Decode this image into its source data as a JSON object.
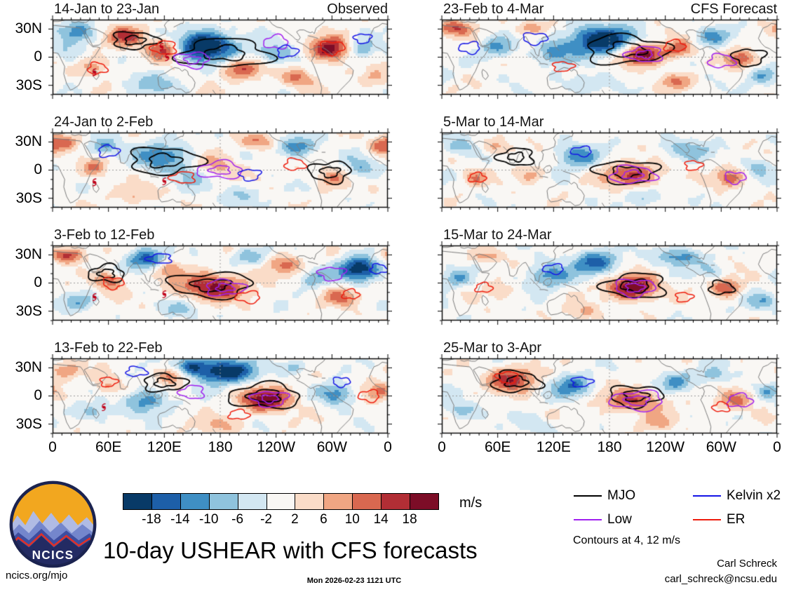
{
  "title": "10-day USHEAR with CFS forecasts",
  "header": {
    "left_col_label": "Observed",
    "right_col_label": "CFS Forecast"
  },
  "notes": {
    "contours": "Contours at 4, 12 m/s",
    "units": "m/s"
  },
  "logo": {
    "text": "NCICS"
  },
  "footer": {
    "site": "ncics.org/mjo",
    "timestamp": "Mon 2026-02-23 1121 UTC",
    "credit_name": "Carl Schreck",
    "credit_email": "carl_schreck@ncsu.edu"
  },
  "chart_data": {
    "type": "heatmap",
    "projection": "longitude 0E through 180 to 0, latitude 40N to 40S",
    "x_ticks": [
      "0",
      "60E",
      "120E",
      "180",
      "120W",
      "60W",
      "0"
    ],
    "y_ticks": [
      "30N",
      "0",
      "30S"
    ],
    "colorbar": {
      "label": "m/s",
      "levels": [
        -18,
        -14,
        -10,
        -6,
        -2,
        2,
        6,
        10,
        14,
        18
      ],
      "colors": [
        "#083a67",
        "#1d5fa8",
        "#3f8fc4",
        "#8fc3dd",
        "#d3e7f2",
        "#f9f7f4",
        "#fadcc8",
        "#f0a683",
        "#d96850",
        "#b22e35",
        "#7c0d27"
      ]
    },
    "legend": [
      {
        "label": "MJO",
        "color": "#000000"
      },
      {
        "label": "Low",
        "color": "#a020f0"
      },
      {
        "label": "Kelvin x2",
        "color": "#1414e6"
      },
      {
        "label": "ER",
        "color": "#ee1c0c"
      }
    ],
    "panels": [
      {
        "label": "14-Jan to 23-Jan",
        "column": 0,
        "row": 0,
        "blobs": [
          [
            165,
            12,
            -26,
            22,
            11
          ],
          [
            237,
            2,
            -10,
            16,
            9
          ],
          [
            28,
            27,
            -13,
            13,
            8
          ],
          [
            333,
            8,
            -10,
            11,
            7
          ],
          [
            105,
            -28,
            -8,
            18,
            9
          ],
          [
            120,
            8,
            17,
            12,
            8
          ],
          [
            80,
            22,
            15,
            15,
            8
          ],
          [
            298,
            8,
            21,
            14,
            9
          ],
          [
            205,
            -12,
            14,
            16,
            8
          ],
          [
            262,
            -22,
            11,
            13,
            7
          ],
          [
            345,
            -22,
            8,
            11,
            7
          ],
          [
            45,
            -10,
            9,
            12,
            7
          ],
          [
            15,
            5,
            -6,
            10,
            8
          ]
        ],
        "contours": [
          [
            "mjo",
            185,
            4,
            48,
            15
          ],
          [
            "mjo",
            88,
            18,
            24,
            9
          ],
          [
            "low",
            150,
            -3,
            18,
            8
          ],
          [
            "low",
            240,
            16,
            13,
            7
          ],
          [
            "kelvin",
            252,
            6,
            11,
            6
          ],
          [
            "kelvin",
            333,
            20,
            9,
            5
          ],
          [
            "er",
            120,
            10,
            13,
            7
          ],
          [
            "er",
            48,
            -12,
            10,
            6
          ],
          [
            "er",
            300,
            10,
            13,
            7
          ]
        ],
        "storms": [
          [
            117,
            11
          ],
          [
            123,
            0
          ],
          [
            45,
            -16
          ]
        ]
      },
      {
        "label": "24-Jan to 2-Feb",
        "column": 0,
        "row": 1,
        "blobs": [
          [
            10,
            30,
            13,
            12,
            6
          ],
          [
            55,
            25,
            -11,
            12,
            7
          ],
          [
            120,
            14,
            -13,
            22,
            11
          ],
          [
            152,
            -6,
            -9,
            13,
            8
          ],
          [
            45,
            2,
            11,
            10,
            7
          ],
          [
            172,
            4,
            9,
            18,
            9
          ],
          [
            222,
            30,
            11,
            14,
            6
          ],
          [
            262,
            25,
            -13,
            16,
            8
          ],
          [
            330,
            2,
            -9,
            13,
            8
          ],
          [
            300,
            -8,
            11,
            11,
            7
          ],
          [
            352,
            25,
            10,
            10,
            6
          ],
          [
            200,
            -26,
            -6,
            18,
            7
          ],
          [
            90,
            -26,
            7,
            14,
            7
          ]
        ],
        "contours": [
          [
            "mjo",
            120,
            10,
            38,
            14
          ],
          [
            "mjo",
            298,
            -2,
            22,
            11
          ],
          [
            "low",
            180,
            0,
            24,
            9
          ],
          [
            "kelvin",
            60,
            20,
            11,
            6
          ],
          [
            "kelvin",
            212,
            -5,
            11,
            6
          ],
          [
            "er",
            140,
            -8,
            13,
            6
          ],
          [
            "er",
            260,
            6,
            11,
            6
          ]
        ],
        "storms": [
          [
            45,
            -13
          ],
          [
            120,
            -12
          ]
        ]
      },
      {
        "label": "3-Feb to 12-Feb",
        "column": 0,
        "row": 2,
        "blobs": [
          [
            15,
            30,
            15,
            14,
            6
          ],
          [
            100,
            25,
            -15,
            16,
            8
          ],
          [
            60,
            2,
            13,
            11,
            7
          ],
          [
            172,
            -4,
            19,
            26,
            10
          ],
          [
            330,
            15,
            -22,
            16,
            9
          ],
          [
            281,
            5,
            -9,
            11,
            7
          ],
          [
            250,
            20,
            11,
            13,
            7
          ],
          [
            210,
            28,
            -9,
            13,
            6
          ],
          [
            140,
            -28,
            -7,
            16,
            7
          ],
          [
            310,
            -15,
            11,
            13,
            7
          ],
          [
            30,
            -20,
            -8,
            13,
            7
          ],
          [
            125,
            15,
            11,
            9,
            6
          ]
        ],
        "contours": [
          [
            "mjo",
            170,
            -2,
            44,
            13
          ],
          [
            "mjo",
            58,
            10,
            19,
            9
          ],
          [
            "low",
            185,
            -5,
            21,
            8
          ],
          [
            "low",
            300,
            10,
            14,
            7
          ],
          [
            "kelvin",
            115,
            26,
            13,
            5
          ],
          [
            "kelvin",
            350,
            15,
            9,
            5
          ],
          [
            "er",
            65,
            0,
            11,
            6
          ],
          [
            "er",
            210,
            -15,
            13,
            6
          ],
          [
            "er",
            320,
            -12,
            9,
            5
          ]
        ],
        "storms": [
          [
            45,
            -15
          ],
          [
            120,
            -12
          ]
        ]
      },
      {
        "label": "13-Feb to 22-Feb",
        "column": 0,
        "row": 3,
        "blobs": [
          [
            185,
            26,
            -23,
            22,
            9
          ],
          [
            148,
            31,
            -16,
            13,
            7
          ],
          [
            100,
            -5,
            -13,
            16,
            9
          ],
          [
            305,
            2,
            -13,
            13,
            8
          ],
          [
            230,
            -4,
            21,
            19,
            9
          ],
          [
            130,
            22,
            13,
            12,
            7
          ],
          [
            15,
            27,
            11,
            11,
            6
          ],
          [
            350,
            5,
            10,
            11,
            7
          ],
          [
            60,
            10,
            8,
            11,
            7
          ],
          [
            45,
            -18,
            -9,
            13,
            7
          ],
          [
            180,
            -31,
            7,
            16,
            6
          ],
          [
            262,
            31,
            -8,
            11,
            5
          ]
        ],
        "contours": [
          [
            "mjo",
            228,
            0,
            38,
            13
          ],
          [
            "mjo",
            120,
            14,
            23,
            9
          ],
          [
            "low",
            233,
            -3,
            19,
            8
          ],
          [
            "low",
            150,
            4,
            13,
            7
          ],
          [
            "kelvin",
            90,
            26,
            11,
            5
          ],
          [
            "kelvin",
            310,
            15,
            9,
            5
          ],
          [
            "er",
            340,
            0,
            11,
            6
          ],
          [
            "er",
            200,
            -20,
            11,
            5
          ],
          [
            "er",
            60,
            15,
            9,
            5
          ]
        ],
        "storms": [
          [
            55,
            -12
          ]
        ]
      },
      {
        "label": "23-Feb to 4-Mar",
        "column": 1,
        "row": 0,
        "blobs": [
          [
            170,
            18,
            -23,
            25,
            11
          ],
          [
            120,
            4,
            -11,
            13,
            8
          ],
          [
            215,
            3,
            21,
            16,
            8
          ],
          [
            255,
            8,
            13,
            11,
            7
          ],
          [
            15,
            31,
            13,
            13,
            6
          ],
          [
            95,
            31,
            11,
            11,
            5
          ],
          [
            60,
            10,
            -11,
            13,
            8
          ],
          [
            290,
            22,
            -11,
            13,
            7
          ],
          [
            320,
            -2,
            13,
            11,
            7
          ],
          [
            345,
            -20,
            -9,
            13,
            7
          ],
          [
            150,
            -28,
            -7,
            18,
            7
          ],
          [
            250,
            -26,
            9,
            13,
            6
          ]
        ],
        "contours": [
          [
            "mjo",
            198,
            8,
            44,
            15
          ],
          [
            "mjo",
            330,
            0,
            17,
            9
          ],
          [
            "low",
            218,
            3,
            19,
            8
          ],
          [
            "low",
            300,
            -4,
            14,
            7
          ],
          [
            "kelvin",
            100,
            20,
            13,
            6
          ],
          [
            "kelvin",
            30,
            10,
            11,
            6
          ],
          [
            "er",
            250,
            12,
            11,
            6
          ],
          [
            "er",
            130,
            -10,
            11,
            5
          ]
        ],
        "storms": []
      },
      {
        "label": "5-Mar to 14-Mar",
        "column": 1,
        "row": 1,
        "blobs": [
          [
            205,
            -5,
            15,
            22,
            9
          ],
          [
            145,
            15,
            -13,
            16,
            9
          ],
          [
            260,
            22,
            -9,
            18,
            8
          ],
          [
            20,
            25,
            -9,
            13,
            7
          ],
          [
            60,
            25,
            9,
            11,
            6
          ],
          [
            310,
            -8,
            13,
            11,
            7
          ],
          [
            340,
            2,
            -8,
            11,
            7
          ],
          [
            95,
            -5,
            7,
            11,
            7
          ],
          [
            220,
            -30,
            -6,
            18,
            7
          ],
          [
            35,
            -8,
            9,
            9,
            6
          ]
        ],
        "contours": [
          [
            "mjo",
            198,
            -2,
            33,
            12
          ],
          [
            "mjo",
            80,
            14,
            19,
            9
          ],
          [
            "low",
            205,
            -5,
            24,
            9
          ],
          [
            "low",
            315,
            -8,
            11,
            6
          ],
          [
            "kelvin",
            150,
            20,
            11,
            5
          ],
          [
            "er",
            38,
            -8,
            9,
            5
          ],
          [
            "er",
            270,
            5,
            9,
            5
          ]
        ],
        "storms": []
      },
      {
        "label": "15-Mar to 24-Mar",
        "column": 1,
        "row": 2,
        "blobs": [
          [
            205,
            -5,
            23,
            18,
            9
          ],
          [
            165,
            22,
            -15,
            18,
            9
          ],
          [
            115,
            8,
            -13,
            16,
            9
          ],
          [
            255,
            28,
            -13,
            16,
            7
          ],
          [
            305,
            -5,
            15,
            11,
            7
          ],
          [
            15,
            5,
            -9,
            11,
            7
          ],
          [
            50,
            28,
            9,
            11,
            5
          ],
          [
            345,
            -20,
            -9,
            13,
            7
          ],
          [
            150,
            -31,
            7,
            13,
            6
          ],
          [
            290,
            12,
            -7,
            9,
            6
          ],
          [
            60,
            -8,
            6,
            10,
            6
          ]
        ],
        "contours": [
          [
            "mjo",
            208,
            -3,
            33,
            13
          ],
          [
            "mjo",
            300,
            -5,
            13,
            7
          ],
          [
            "low",
            207,
            -5,
            21,
            9
          ],
          [
            "kelvin",
            120,
            15,
            11,
            5
          ],
          [
            "er",
            45,
            -5,
            9,
            5
          ],
          [
            "er",
            260,
            -15,
            9,
            5
          ]
        ],
        "storms": []
      },
      {
        "label": "25-Mar to 3-Apr",
        "column": 1,
        "row": 3,
        "blobs": [
          [
            75,
            18,
            17,
            18,
            9
          ],
          [
            205,
            -5,
            13,
            25,
            9
          ],
          [
            140,
            10,
            -13,
            16,
            9
          ],
          [
            250,
            15,
            -11,
            13,
            8
          ],
          [
            290,
            22,
            -9,
            11,
            6
          ],
          [
            315,
            -5,
            11,
            13,
            7
          ],
          [
            20,
            -15,
            -9,
            13,
            7
          ],
          [
            350,
            5,
            -7,
            9,
            6
          ],
          [
            230,
            -29,
            7,
            13,
            6
          ],
          [
            100,
            -31,
            -6,
            13,
            6
          ]
        ],
        "contours": [
          [
            "mjo",
            80,
            15,
            26,
            11
          ],
          [
            "mjo",
            208,
            0,
            28,
            11
          ],
          [
            "low",
            210,
            -5,
            28,
            10
          ],
          [
            "low",
            320,
            -5,
            13,
            7
          ],
          [
            "kelvin",
            150,
            15,
            11,
            5
          ],
          [
            "er",
            70,
            20,
            11,
            6
          ],
          [
            "er",
            300,
            -12,
            9,
            5
          ]
        ],
        "storms": []
      }
    ]
  }
}
